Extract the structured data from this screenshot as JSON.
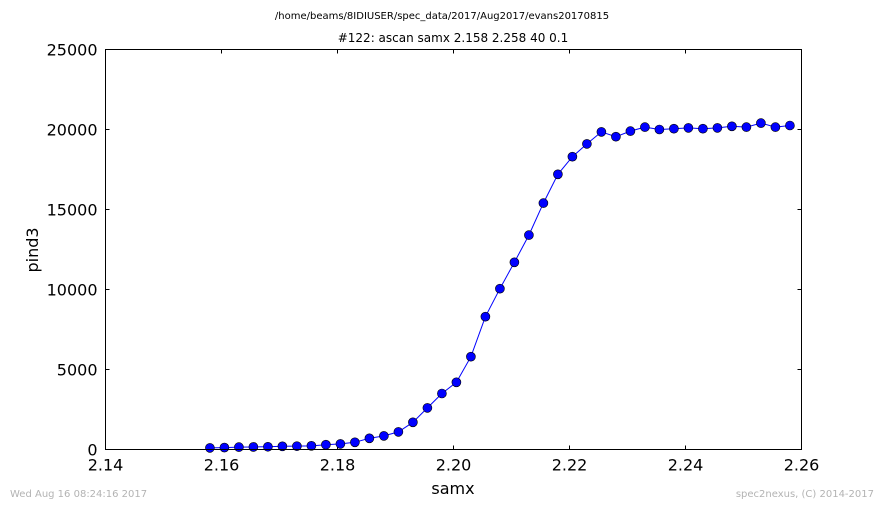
{
  "file_path": "/home/beams/8IDIUSER/spec_data/2017/Aug2017/evans20170815",
  "footer_left": "Wed Aug 16 08:24:16 2017",
  "footer_right": "spec2nexus, (C) 2014-2017",
  "chart_data": {
    "type": "line",
    "title": "#122: ascan  samx 2.158 2.258  40 0.1",
    "xlabel": "samx",
    "ylabel": "pind3",
    "xlim": [
      2.14,
      2.26
    ],
    "ylim": [
      0,
      25000
    ],
    "xticks": [
      "2.14",
      "2.16",
      "2.18",
      "2.20",
      "2.22",
      "2.24",
      "2.26"
    ],
    "yticks": [
      "0",
      "5000",
      "10000",
      "15000",
      "20000",
      "25000"
    ],
    "grid": false,
    "series": [
      {
        "marker": "circle",
        "color": "#0000ff",
        "x": [
          2.158,
          2.1605,
          2.163,
          2.1655,
          2.168,
          2.1705,
          2.173,
          2.1755,
          2.178,
          2.1805,
          2.183,
          2.1855,
          2.188,
          2.1905,
          2.193,
          2.1955,
          2.198,
          2.2005,
          2.203,
          2.2055,
          2.208,
          2.2105,
          2.213,
          2.2155,
          2.218,
          2.2205,
          2.223,
          2.2255,
          2.228,
          2.2305,
          2.233,
          2.2355,
          2.238,
          2.2405,
          2.243,
          2.2455,
          2.248,
          2.2505,
          2.253,
          2.2555,
          2.258
        ],
        "y": [
          100,
          120,
          150,
          160,
          170,
          200,
          210,
          230,
          300,
          350,
          450,
          700,
          850,
          1100,
          1700,
          2600,
          3500,
          4200,
          5800,
          8300,
          10050,
          11700,
          13400,
          15400,
          17200,
          18300,
          19100,
          19850,
          19550,
          19900,
          20150,
          20000,
          20050,
          20100,
          20050,
          20100,
          20200,
          20150,
          20400,
          20150,
          20250
        ]
      }
    ]
  }
}
